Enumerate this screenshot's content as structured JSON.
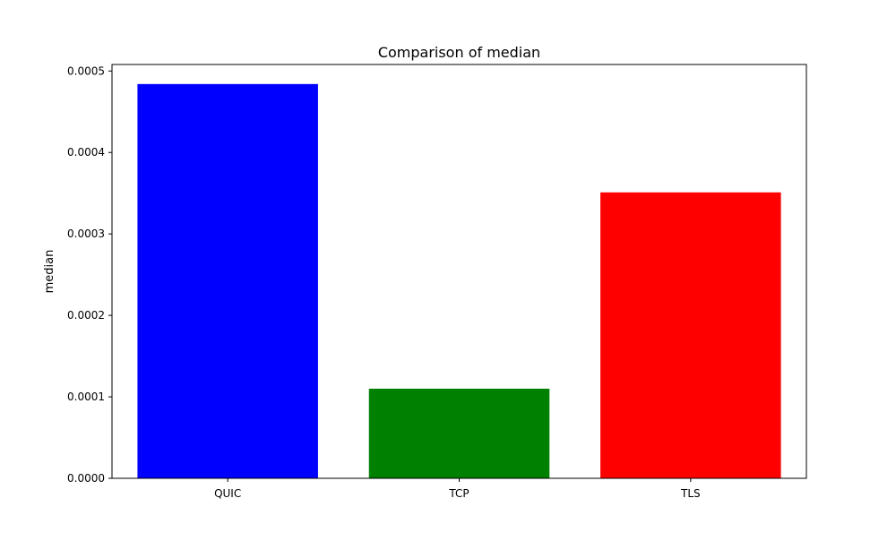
{
  "chart_data": {
    "type": "bar",
    "title": "Comparison of median",
    "xlabel": "",
    "ylabel": "median",
    "categories": [
      "QUIC",
      "TCP",
      "TLS"
    ],
    "values": [
      0.000484,
      0.00011,
      0.000351
    ],
    "colors": [
      "#0000ff",
      "#008000",
      "#ff0000"
    ],
    "ylim": [
      0,
      0.000508
    ],
    "yticks": [
      0.0,
      0.0001,
      0.0002,
      0.0003,
      0.0004,
      0.0005
    ],
    "ytick_labels": [
      "0.0000",
      "0.0001",
      "0.0002",
      "0.0003",
      "0.0004",
      "0.0005"
    ],
    "grid": false,
    "legend": "none"
  }
}
